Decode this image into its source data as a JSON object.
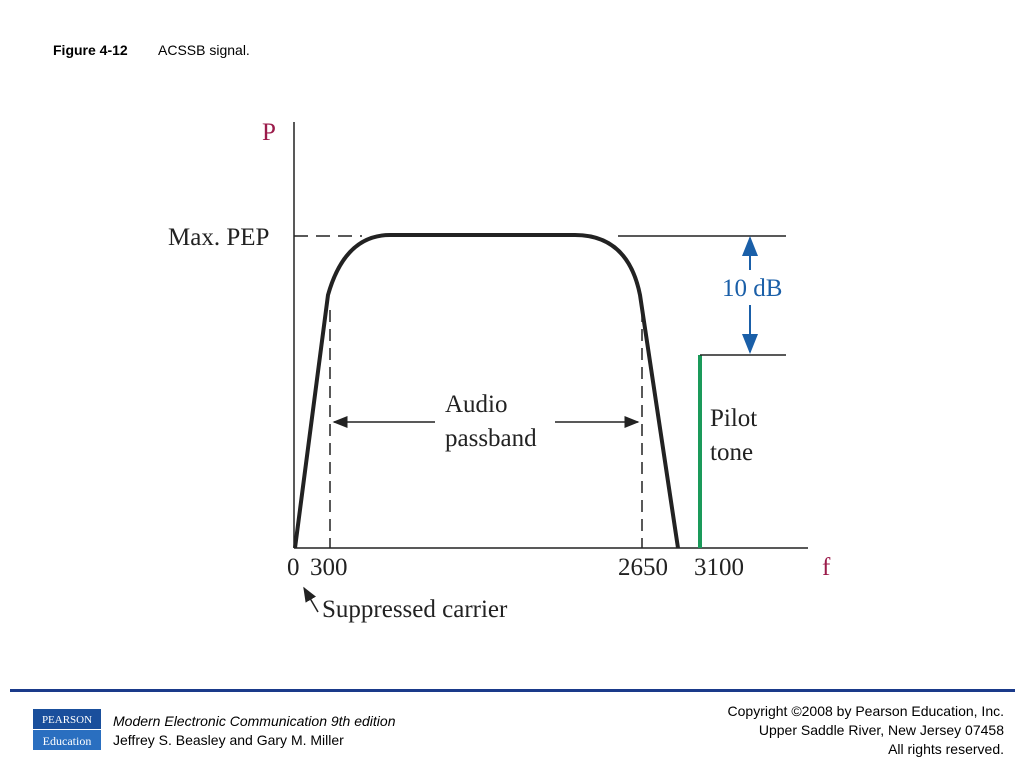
{
  "header": {
    "figure_number": "Figure 4-12",
    "caption": "ACSSB signal."
  },
  "diagram": {
    "y_axis_label": "P",
    "x_axis_label": "f",
    "max_level_label": "Max. PEP",
    "db_label": "10 dB",
    "passband_label": [
      "Audio",
      "passband"
    ],
    "pilot_label": [
      "Pilot",
      "tone"
    ],
    "x_ticks": [
      "0",
      "300",
      "2650",
      "3100"
    ],
    "carrier_label": "Suppressed carrier"
  },
  "footer": {
    "logo": [
      "PEARSON",
      "Education"
    ],
    "book_title": "Modern Electronic Communication 9th edition",
    "authors": "Jeffrey S. Beasley and Gary M. Miller",
    "copyright": [
      "Copyright ©2008 by Pearson Education, Inc.",
      "Upper Saddle River, New Jersey 07458",
      "All rights reserved."
    ]
  }
}
